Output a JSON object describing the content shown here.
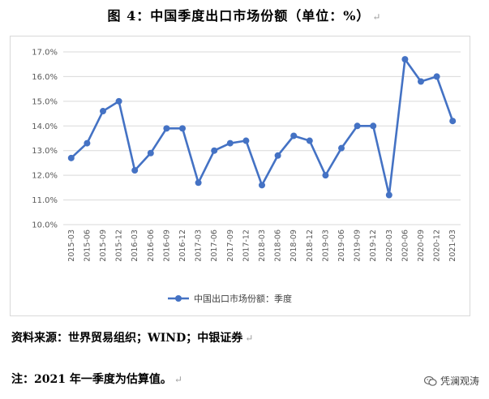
{
  "page": {
    "title": "图 4：中国季度出口市场份额（单位：%）",
    "paragraph_mark": "↵",
    "source_note": "资料来源：世界贸易组织；WIND；中银证券",
    "note": "注：2021 年一季度为估算值。",
    "watermark": "凭澜观涛",
    "watermark_icon": "wechat-icon"
  },
  "colors": {
    "series": "#4472c4",
    "grid": "#d9d9d9",
    "axis_text": "#595959"
  },
  "chart_data": {
    "type": "line",
    "title": "",
    "xlabel": "",
    "ylabel": "",
    "ylim": [
      10.0,
      17.0
    ],
    "yticks": [
      "10.0%",
      "11.0%",
      "12.0%",
      "13.0%",
      "14.0%",
      "15.0%",
      "16.0%",
      "17.0%"
    ],
    "grid": "horizontal",
    "legend_position": "bottom",
    "categories": [
      "2015-03",
      "2015-06",
      "2015-09",
      "2015-12",
      "2016-03",
      "2016-06",
      "2016-09",
      "2016-12",
      "2017-03",
      "2017-06",
      "2017-09",
      "2017-12",
      "2018-03",
      "2018-06",
      "2018-09",
      "2018-12",
      "2019-03",
      "2019-06",
      "2019-09",
      "2019-12",
      "2020-03",
      "2020-06",
      "2020-09",
      "2020-12",
      "2021-03"
    ],
    "series": [
      {
        "name": "中国出口市场份额：季度",
        "values": [
          12.7,
          13.3,
          14.6,
          15.0,
          12.2,
          12.9,
          13.9,
          13.9,
          11.7,
          13.0,
          13.3,
          13.4,
          11.6,
          12.8,
          13.6,
          13.4,
          12.0,
          13.1,
          14.0,
          14.0,
          11.2,
          16.7,
          15.8,
          16.0,
          14.2
        ]
      }
    ]
  }
}
